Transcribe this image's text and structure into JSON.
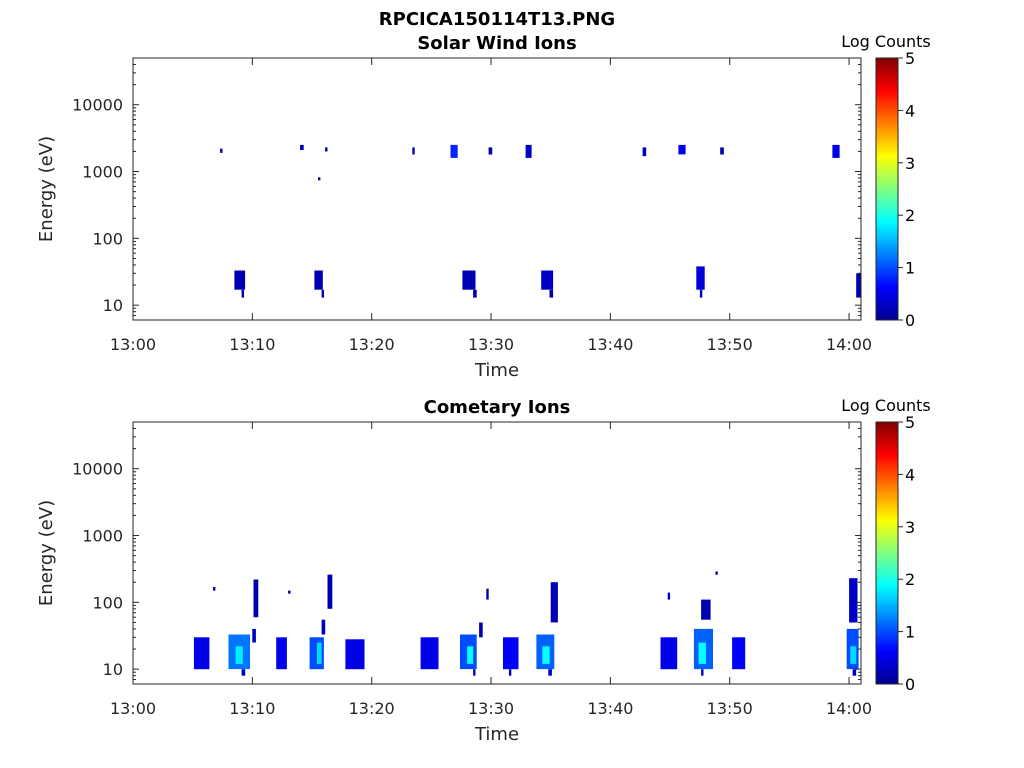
{
  "figure_title": "RPCICA150114T13.PNG",
  "colorbar": {
    "label": "Log Counts",
    "ticks": [
      "5",
      "4",
      "3",
      "2",
      "1",
      "0"
    ],
    "range": [
      0,
      5
    ],
    "colormap": "jet"
  },
  "chart_data": [
    {
      "type": "heatmap",
      "title": "Solar Wind Ions",
      "xlabel": "Time",
      "ylabel": "Energy (eV)",
      "xticks": [
        "13:00",
        "13:10",
        "13:20",
        "13:30",
        "13:40",
        "13:50",
        "14:00"
      ],
      "yticks": [
        "10",
        "100",
        "1000",
        "10000"
      ],
      "xlim": [
        "13:00",
        "14:01"
      ],
      "ylim": [
        6,
        50000
      ],
      "yscale": "log",
      "units": "minutes after 13:00",
      "cells": [
        {
          "t": 7.3,
          "dt": 0.2,
          "e1": 1900,
          "e2": 2200,
          "v": 0.2
        },
        {
          "t": 14.0,
          "dt": 0.3,
          "e1": 2100,
          "e2": 2500,
          "v": 0.2
        },
        {
          "t": 15.5,
          "dt": 0.2,
          "e1": 740,
          "e2": 820,
          "v": 0.2
        },
        {
          "t": 16.1,
          "dt": 0.2,
          "e1": 2000,
          "e2": 2300,
          "v": 0.2
        },
        {
          "t": 23.4,
          "dt": 0.2,
          "e1": 1800,
          "e2": 2300,
          "v": 0.3
        },
        {
          "t": 26.6,
          "dt": 0.6,
          "e1": 1600,
          "e2": 2500,
          "v": 0.8
        },
        {
          "t": 29.8,
          "dt": 0.3,
          "e1": 1800,
          "e2": 2300,
          "v": 0.2
        },
        {
          "t": 32.9,
          "dt": 0.5,
          "e1": 1600,
          "e2": 2500,
          "v": 0.3
        },
        {
          "t": 42.7,
          "dt": 0.3,
          "e1": 1700,
          "e2": 2300,
          "v": 0.3
        },
        {
          "t": 45.7,
          "dt": 0.6,
          "e1": 1800,
          "e2": 2500,
          "v": 0.5
        },
        {
          "t": 49.2,
          "dt": 0.3,
          "e1": 1800,
          "e2": 2300,
          "v": 0.2
        },
        {
          "t": 58.6,
          "dt": 0.6,
          "e1": 1600,
          "e2": 2500,
          "v": 0.5
        },
        {
          "t": 8.5,
          "dt": 0.9,
          "e1": 17,
          "e2": 33,
          "v": 0.2
        },
        {
          "t": 9.1,
          "dt": 0.2,
          "e1": 13,
          "e2": 17,
          "v": 0.2
        },
        {
          "t": 15.2,
          "dt": 0.7,
          "e1": 17,
          "e2": 33,
          "v": 0.2
        },
        {
          "t": 15.8,
          "dt": 0.2,
          "e1": 13,
          "e2": 17,
          "v": 0.2
        },
        {
          "t": 27.6,
          "dt": 1.1,
          "e1": 17,
          "e2": 33,
          "v": 0.2
        },
        {
          "t": 28.5,
          "dt": 0.3,
          "e1": 13,
          "e2": 17,
          "v": 0.2
        },
        {
          "t": 34.2,
          "dt": 1.0,
          "e1": 17,
          "e2": 33,
          "v": 0.3
        },
        {
          "t": 34.9,
          "dt": 0.3,
          "e1": 13,
          "e2": 17,
          "v": 0.2
        },
        {
          "t": 47.2,
          "dt": 0.7,
          "e1": 17,
          "e2": 38,
          "v": 0.4
        },
        {
          "t": 47.5,
          "dt": 0.2,
          "e1": 13,
          "e2": 17,
          "v": 0.2
        },
        {
          "t": 60.6,
          "dt": 0.4,
          "e1": 13,
          "e2": 30,
          "v": 0.2
        }
      ]
    },
    {
      "type": "heatmap",
      "title": "Cometary Ions",
      "xlabel": "Time",
      "ylabel": "Energy (eV)",
      "xticks": [
        "13:00",
        "13:10",
        "13:20",
        "13:30",
        "13:40",
        "13:50",
        "14:00"
      ],
      "yticks": [
        "10",
        "100",
        "1000",
        "10000"
      ],
      "xlim": [
        "13:00",
        "14:01"
      ],
      "ylim": [
        6,
        50000
      ],
      "yscale": "log",
      "units": "minutes after 13:00",
      "cells": [
        {
          "t": 5.1,
          "dt": 1.3,
          "e1": 10,
          "e2": 30,
          "v": 0.5
        },
        {
          "t": 8.0,
          "dt": 1.8,
          "e1": 10,
          "e2": 33,
          "v": 1.2
        },
        {
          "t": 8.6,
          "dt": 0.6,
          "e1": 12,
          "e2": 22,
          "v": 1.8
        },
        {
          "t": 9.1,
          "dt": 0.3,
          "e1": 8,
          "e2": 10,
          "v": 0.3
        },
        {
          "t": 10.1,
          "dt": 0.4,
          "e1": 60,
          "e2": 220,
          "v": 0.2
        },
        {
          "t": 10.0,
          "dt": 0.3,
          "e1": 25,
          "e2": 40,
          "v": 0.3
        },
        {
          "t": 6.7,
          "dt": 0.2,
          "e1": 150,
          "e2": 170,
          "v": 0.2
        },
        {
          "t": 12.0,
          "dt": 0.9,
          "e1": 10,
          "e2": 30,
          "v": 0.5
        },
        {
          "t": 13.0,
          "dt": 0.2,
          "e1": 135,
          "e2": 150,
          "v": 0.2
        },
        {
          "t": 14.8,
          "dt": 1.2,
          "e1": 10,
          "e2": 30,
          "v": 1.0
        },
        {
          "t": 15.4,
          "dt": 0.4,
          "e1": 12,
          "e2": 25,
          "v": 1.7
        },
        {
          "t": 15.8,
          "dt": 0.3,
          "e1": 33,
          "e2": 55,
          "v": 0.3
        },
        {
          "t": 16.3,
          "dt": 0.4,
          "e1": 80,
          "e2": 260,
          "v": 0.2
        },
        {
          "t": 17.8,
          "dt": 1.6,
          "e1": 10,
          "e2": 28,
          "v": 0.5
        },
        {
          "t": 24.1,
          "dt": 1.5,
          "e1": 10,
          "e2": 30,
          "v": 0.5
        },
        {
          "t": 27.4,
          "dt": 1.4,
          "e1": 10,
          "e2": 33,
          "v": 1.0
        },
        {
          "t": 28.0,
          "dt": 0.5,
          "e1": 12,
          "e2": 22,
          "v": 1.9
        },
        {
          "t": 28.5,
          "dt": 0.2,
          "e1": 8,
          "e2": 10,
          "v": 0.3
        },
        {
          "t": 29.0,
          "dt": 0.3,
          "e1": 30,
          "e2": 50,
          "v": 0.2
        },
        {
          "t": 29.6,
          "dt": 0.2,
          "e1": 110,
          "e2": 160,
          "v": 0.2
        },
        {
          "t": 31.0,
          "dt": 1.3,
          "e1": 10,
          "e2": 30,
          "v": 0.6
        },
        {
          "t": 31.5,
          "dt": 0.2,
          "e1": 8,
          "e2": 10,
          "v": 0.2
        },
        {
          "t": 33.8,
          "dt": 1.5,
          "e1": 10,
          "e2": 33,
          "v": 1.1
        },
        {
          "t": 34.3,
          "dt": 0.6,
          "e1": 12,
          "e2": 22,
          "v": 1.9
        },
        {
          "t": 34.8,
          "dt": 0.3,
          "e1": 8,
          "e2": 10,
          "v": 0.3
        },
        {
          "t": 35.0,
          "dt": 0.6,
          "e1": 50,
          "e2": 200,
          "v": 0.2
        },
        {
          "t": 44.2,
          "dt": 1.4,
          "e1": 10,
          "e2": 30,
          "v": 0.5
        },
        {
          "t": 44.8,
          "dt": 0.2,
          "e1": 110,
          "e2": 140,
          "v": 0.2
        },
        {
          "t": 47.0,
          "dt": 1.6,
          "e1": 10,
          "e2": 40,
          "v": 1.1
        },
        {
          "t": 47.4,
          "dt": 0.6,
          "e1": 12,
          "e2": 25,
          "v": 1.9
        },
        {
          "t": 47.6,
          "dt": 0.2,
          "e1": 8,
          "e2": 10,
          "v": 0.3
        },
        {
          "t": 47.6,
          "dt": 0.8,
          "e1": 55,
          "e2": 110,
          "v": 0.2
        },
        {
          "t": 48.8,
          "dt": 0.2,
          "e1": 260,
          "e2": 290,
          "v": 0.2
        },
        {
          "t": 50.2,
          "dt": 1.1,
          "e1": 10,
          "e2": 30,
          "v": 0.6
        },
        {
          "t": 59.8,
          "dt": 1.0,
          "e1": 10,
          "e2": 40,
          "v": 1.0
        },
        {
          "t": 60.1,
          "dt": 0.5,
          "e1": 12,
          "e2": 22,
          "v": 1.7
        },
        {
          "t": 60.3,
          "dt": 0.3,
          "e1": 8,
          "e2": 10,
          "v": 0.3
        },
        {
          "t": 60.0,
          "dt": 0.7,
          "e1": 50,
          "e2": 230,
          "v": 0.3
        }
      ]
    }
  ]
}
